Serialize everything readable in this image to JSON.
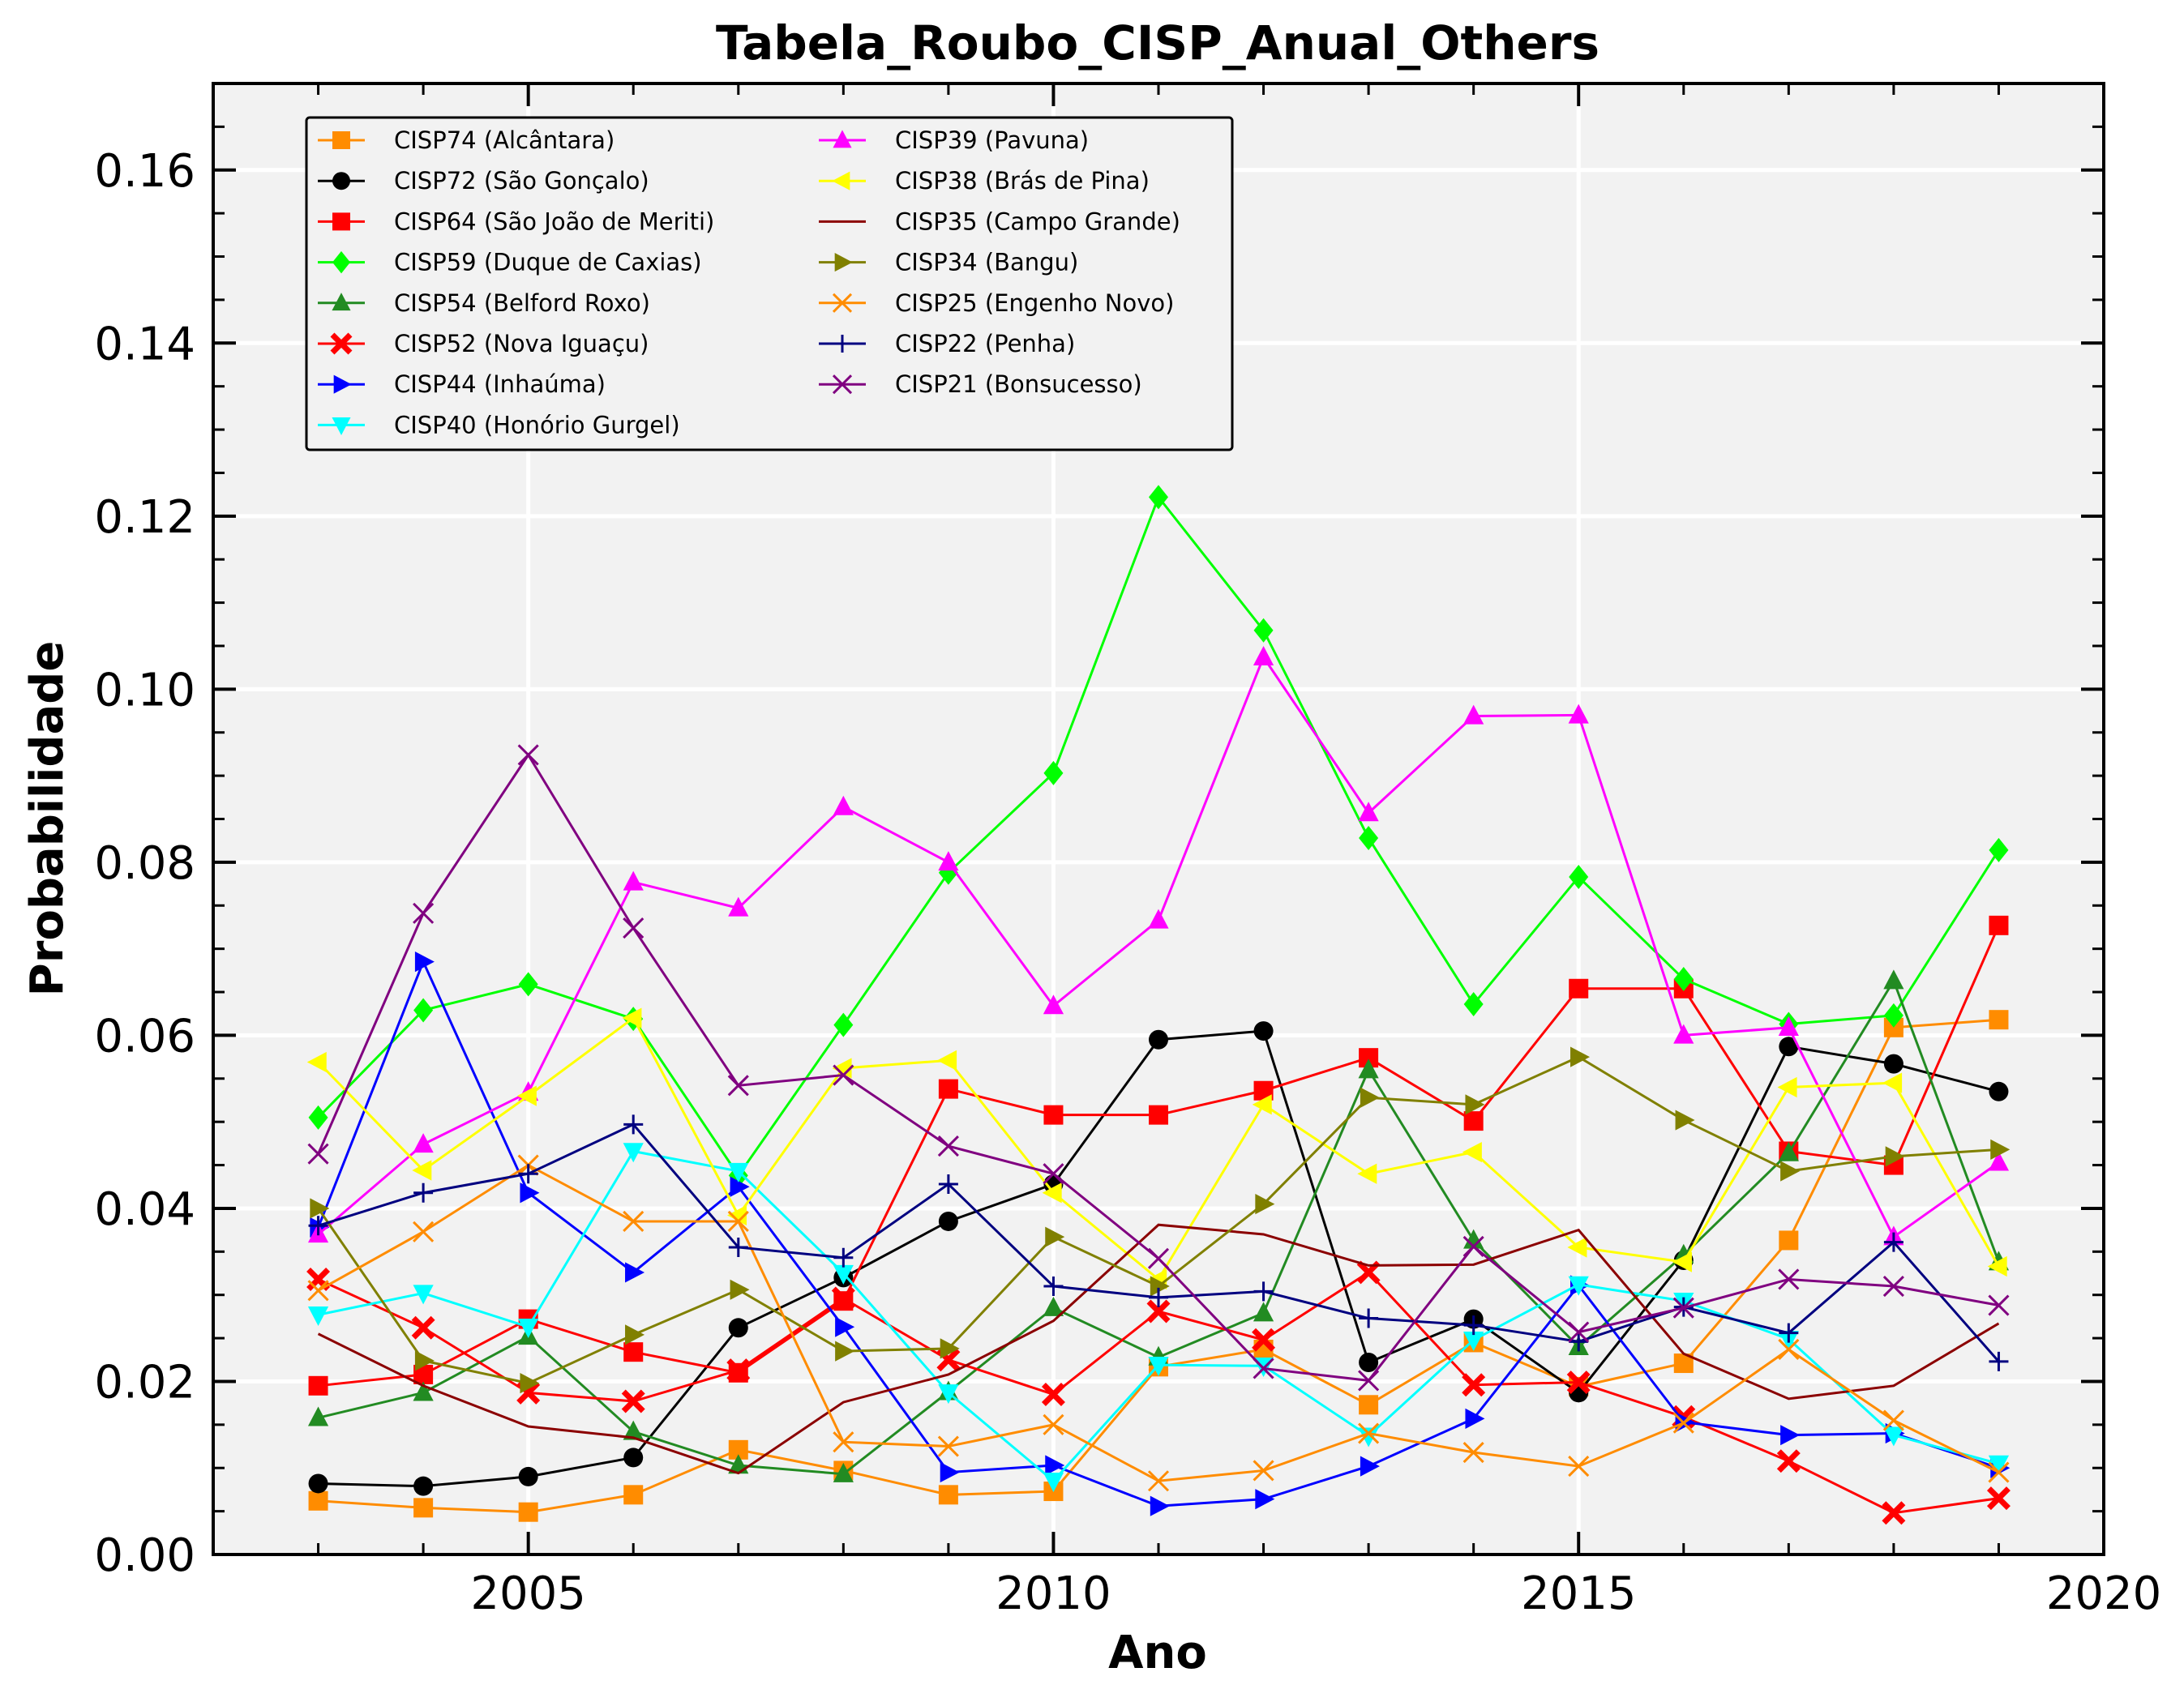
{
  "chart_data": {
    "type": "line",
    "title": "Tabela_Roubo_CISP_Anual_Others",
    "xlabel": "Ano",
    "ylabel": "Probabilidade",
    "xlim": [
      2002,
      2020
    ],
    "ylim": [
      0.0,
      0.17
    ],
    "x_ticks": [
      2005,
      2010,
      2015,
      2020
    ],
    "x_tick_labels": [
      "2005",
      "2010",
      "2015",
      "2020"
    ],
    "y_ticks": [
      0.0,
      0.02,
      0.04,
      0.06,
      0.08,
      0.1,
      0.12,
      0.14,
      0.16
    ],
    "y_tick_labels": [
      "0.00",
      "0.02",
      "0.04",
      "0.06",
      "0.08",
      "0.10",
      "0.12",
      "0.14",
      "0.16"
    ],
    "grid": true,
    "legend_position": "top-left",
    "x": [
      2003,
      2004,
      2005,
      2006,
      2007,
      2008,
      2009,
      2010,
      2011,
      2012,
      2013,
      2014,
      2015,
      2016,
      2017,
      2018,
      2019
    ],
    "series": [
      {
        "name": "CISP74 (Alcântara)",
        "color": "#ff8c00",
        "marker": "square",
        "values": [
          0.0062,
          0.0054,
          0.0049,
          0.0069,
          0.0121,
          0.0097,
          0.0069,
          0.0073,
          0.0217,
          0.0237,
          0.0173,
          0.0245,
          0.0194,
          0.0221,
          0.0363,
          0.0609,
          0.0618
        ]
      },
      {
        "name": "CISP72 (São Gonçalo)",
        "color": "#000000",
        "marker": "circle",
        "values": [
          0.0082,
          0.0079,
          0.009,
          0.0112,
          0.0262,
          0.032,
          0.0385,
          0.0428,
          0.0595,
          0.0605,
          0.0222,
          0.0272,
          0.0187,
          0.034,
          0.0587,
          0.0567,
          0.0535
        ]
      },
      {
        "name": "CISP64 (São João de Meriti)",
        "color": "#ff0000",
        "marker": "square",
        "values": [
          0.0195,
          0.0208,
          0.0272,
          0.0234,
          0.021,
          0.0293,
          0.0538,
          0.0508,
          0.0508,
          0.0536,
          0.0574,
          0.0501,
          0.0654,
          0.0654,
          0.0466,
          0.045,
          0.0727
        ]
      },
      {
        "name": "CISP59 (Duque de Caxias)",
        "color": "#00ff00",
        "marker": "diamond",
        "values": [
          0.0505,
          0.0629,
          0.0659,
          0.0619,
          0.0438,
          0.0612,
          0.0788,
          0.0903,
          0.1222,
          0.1068,
          0.0828,
          0.0636,
          0.0783,
          0.0665,
          0.0613,
          0.0623,
          0.0814
        ]
      },
      {
        "name": "CISP54 (Belford Roxo)",
        "color": "#228b22",
        "marker": "triangle-up",
        "values": [
          0.0158,
          0.0187,
          0.0252,
          0.0142,
          0.0103,
          0.0093,
          0.0188,
          0.0285,
          0.0228,
          0.0279,
          0.056,
          0.0363,
          0.024,
          0.0346,
          0.0464,
          0.0663,
          0.0338
        ]
      },
      {
        "name": "CISP52 (Nova Iguaçu)",
        "color": "#ff0000",
        "marker": "x-filled",
        "values": [
          0.0318,
          0.0262,
          0.0187,
          0.0177,
          0.0213,
          0.0296,
          0.0225,
          0.0185,
          0.0281,
          0.0248,
          0.0326,
          0.0196,
          0.0199,
          0.0159,
          0.0108,
          0.0048,
          0.0065
        ]
      },
      {
        "name": "CISP44 (Inhaúma)",
        "color": "#0000ff",
        "marker": "triangle-right",
        "values": [
          0.0378,
          0.0685,
          0.0418,
          0.0326,
          0.0425,
          0.0263,
          0.0095,
          0.0103,
          0.0056,
          0.0064,
          0.0102,
          0.0157,
          0.0311,
          0.0153,
          0.0138,
          0.014,
          0.01
        ]
      },
      {
        "name": "CISP40 (Honório Gurgel)",
        "color": "#00ffff",
        "marker": "triangle-down",
        "values": [
          0.0277,
          0.0302,
          0.0263,
          0.0466,
          0.0443,
          0.0325,
          0.0187,
          0.0085,
          0.0219,
          0.0218,
          0.0137,
          0.0248,
          0.0312,
          0.0293,
          0.0249,
          0.0138,
          0.0105
        ]
      },
      {
        "name": "CISP39 (Pavuna)",
        "color": "#ff00ff",
        "marker": "triangle-up",
        "values": [
          0.037,
          0.0474,
          0.0534,
          0.0777,
          0.0747,
          0.0864,
          0.08,
          0.0634,
          0.0733,
          0.1037,
          0.0857,
          0.0969,
          0.097,
          0.06,
          0.0609,
          0.0367,
          0.0453
        ]
      },
      {
        "name": "CISP38 (Brás de Pina)",
        "color": "#ffff00",
        "marker": "triangle-left",
        "values": [
          0.0569,
          0.0444,
          0.053,
          0.062,
          0.0392,
          0.0562,
          0.0571,
          0.0418,
          0.0318,
          0.052,
          0.044,
          0.0465,
          0.0355,
          0.0338,
          0.054,
          0.0545,
          0.0333
        ]
      },
      {
        "name": "CISP35 (Campo Grande)",
        "color": "#8b0000",
        "marker": "none",
        "values": [
          0.0255,
          0.0195,
          0.0148,
          0.0135,
          0.0094,
          0.0176,
          0.0208,
          0.027,
          0.0381,
          0.037,
          0.0334,
          0.0335,
          0.0375,
          0.0232,
          0.018,
          0.0195,
          0.0267
        ]
      },
      {
        "name": "CISP34 (Bangu)",
        "color": "#808000",
        "marker": "triangle-right",
        "values": [
          0.04,
          0.0224,
          0.0198,
          0.0254,
          0.0306,
          0.0235,
          0.0238,
          0.0367,
          0.031,
          0.0405,
          0.0528,
          0.052,
          0.0575,
          0.0502,
          0.0443,
          0.046,
          0.0468
        ]
      },
      {
        "name": "CISP25 (Engenho Novo)",
        "color": "#ff8c00",
        "marker": "x",
        "values": [
          0.0305,
          0.0373,
          0.045,
          0.0385,
          0.0385,
          0.013,
          0.0125,
          0.015,
          0.0085,
          0.0097,
          0.014,
          0.0118,
          0.0102,
          0.0152,
          0.0237,
          0.0155,
          0.0095
        ]
      },
      {
        "name": "CISP22 (Penha)",
        "color": "#000080",
        "marker": "plus",
        "values": [
          0.038,
          0.0418,
          0.044,
          0.0497,
          0.0355,
          0.0343,
          0.0428,
          0.031,
          0.0297,
          0.0304,
          0.0273,
          0.0265,
          0.0246,
          0.0286,
          0.0256,
          0.0361,
          0.0223
        ]
      },
      {
        "name": "CISP21 (Bonsucesso)",
        "color": "#800080",
        "marker": "x",
        "values": [
          0.0463,
          0.0741,
          0.0924,
          0.0724,
          0.0542,
          0.0554,
          0.0472,
          0.044,
          0.0342,
          0.0215,
          0.0201,
          0.0356,
          0.0257,
          0.0285,
          0.0318,
          0.031,
          0.0288
        ]
      }
    ]
  }
}
